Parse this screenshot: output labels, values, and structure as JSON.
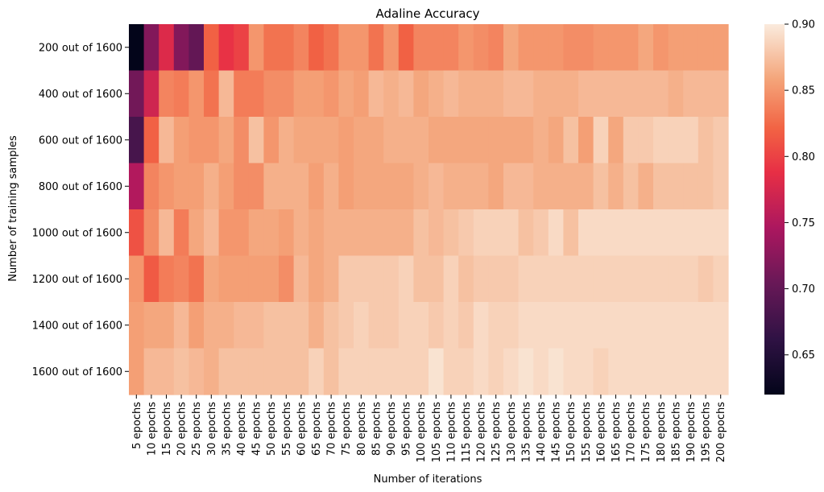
{
  "chart_data": {
    "type": "heatmap",
    "title": "Adaline Accuracy",
    "xlabel": "Number of iterations",
    "ylabel": "Number of training samples",
    "x_categories": [
      "5 epochs",
      "10 epochs",
      "15 epochs",
      "20 epochs",
      "25 epochs",
      "30 epochs",
      "35 epochs",
      "40 epochs",
      "45 epochs",
      "50 epochs",
      "55 epochs",
      "60 epochs",
      "65 epochs",
      "70 epochs",
      "75 epochs",
      "80 epochs",
      "85 epochs",
      "90 epochs",
      "95 epochs",
      "100 epochs",
      "105 epochs",
      "110 epochs",
      "115 epochs",
      "120 epochs",
      "125 epochs",
      "130 epochs",
      "135 epochs",
      "140 epochs",
      "145 epochs",
      "150 epochs",
      "155 epochs",
      "160 epochs",
      "165 epochs",
      "170 epochs",
      "175 epochs",
      "180 epochs",
      "185 epochs",
      "190 epochs",
      "195 epochs",
      "200 epochs"
    ],
    "y_categories": [
      "200 out of 1600",
      "400 out of 1600",
      "600 out of 1600",
      "800 out of 1600",
      "1000 out of 1600",
      "1200 out of 1600",
      "1400 out of 1600",
      "1600 out of 1600"
    ],
    "values": [
      [
        0.62,
        0.72,
        0.78,
        0.72,
        0.7,
        0.82,
        0.79,
        0.8,
        0.85,
        0.83,
        0.83,
        0.84,
        0.82,
        0.83,
        0.85,
        0.85,
        0.83,
        0.85,
        0.82,
        0.84,
        0.84,
        0.84,
        0.85,
        0.845,
        0.84,
        0.86,
        0.85,
        0.85,
        0.85,
        0.845,
        0.845,
        0.85,
        0.85,
        0.85,
        0.86,
        0.85,
        0.855,
        0.855,
        0.855,
        0.855
      ],
      [
        0.71,
        0.77,
        0.84,
        0.835,
        0.85,
        0.83,
        0.87,
        0.835,
        0.835,
        0.845,
        0.845,
        0.855,
        0.855,
        0.85,
        0.86,
        0.855,
        0.87,
        0.865,
        0.87,
        0.86,
        0.865,
        0.87,
        0.865,
        0.865,
        0.865,
        0.87,
        0.87,
        0.865,
        0.865,
        0.865,
        0.87,
        0.87,
        0.87,
        0.87,
        0.87,
        0.87,
        0.865,
        0.87,
        0.87,
        0.87
      ],
      [
        0.68,
        0.82,
        0.87,
        0.855,
        0.85,
        0.85,
        0.86,
        0.845,
        0.875,
        0.85,
        0.865,
        0.86,
        0.86,
        0.86,
        0.855,
        0.86,
        0.86,
        0.865,
        0.865,
        0.865,
        0.86,
        0.86,
        0.86,
        0.86,
        0.86,
        0.86,
        0.86,
        0.865,
        0.86,
        0.875,
        0.855,
        0.885,
        0.86,
        0.88,
        0.88,
        0.885,
        0.885,
        0.885,
        0.875,
        0.88
      ],
      [
        0.75,
        0.84,
        0.85,
        0.855,
        0.855,
        0.865,
        0.855,
        0.845,
        0.845,
        0.865,
        0.865,
        0.865,
        0.855,
        0.865,
        0.855,
        0.86,
        0.86,
        0.86,
        0.86,
        0.865,
        0.87,
        0.865,
        0.865,
        0.865,
        0.86,
        0.87,
        0.87,
        0.865,
        0.865,
        0.865,
        0.865,
        0.875,
        0.865,
        0.875,
        0.865,
        0.875,
        0.875,
        0.875,
        0.875,
        0.88
      ],
      [
        0.81,
        0.845,
        0.87,
        0.835,
        0.86,
        0.87,
        0.85,
        0.85,
        0.86,
        0.86,
        0.855,
        0.865,
        0.86,
        0.865,
        0.865,
        0.865,
        0.865,
        0.865,
        0.865,
        0.875,
        0.87,
        0.875,
        0.88,
        0.885,
        0.885,
        0.885,
        0.875,
        0.88,
        0.89,
        0.875,
        0.89,
        0.89,
        0.89,
        0.89,
        0.89,
        0.89,
        0.89,
        0.89,
        0.89,
        0.89
      ],
      [
        0.85,
        0.815,
        0.835,
        0.84,
        0.83,
        0.86,
        0.855,
        0.855,
        0.855,
        0.855,
        0.845,
        0.87,
        0.86,
        0.865,
        0.88,
        0.88,
        0.88,
        0.88,
        0.885,
        0.875,
        0.875,
        0.885,
        0.875,
        0.88,
        0.88,
        0.88,
        0.885,
        0.885,
        0.885,
        0.885,
        0.885,
        0.885,
        0.885,
        0.885,
        0.885,
        0.885,
        0.885,
        0.885,
        0.88,
        0.885
      ],
      [
        0.855,
        0.86,
        0.86,
        0.87,
        0.855,
        0.865,
        0.865,
        0.87,
        0.87,
        0.875,
        0.875,
        0.875,
        0.865,
        0.875,
        0.88,
        0.885,
        0.88,
        0.88,
        0.885,
        0.885,
        0.88,
        0.885,
        0.88,
        0.89,
        0.885,
        0.885,
        0.89,
        0.89,
        0.89,
        0.89,
        0.89,
        0.89,
        0.89,
        0.89,
        0.89,
        0.89,
        0.89,
        0.89,
        0.89,
        0.89
      ],
      [
        0.855,
        0.87,
        0.87,
        0.875,
        0.87,
        0.865,
        0.875,
        0.875,
        0.875,
        0.875,
        0.875,
        0.875,
        0.885,
        0.875,
        0.885,
        0.885,
        0.885,
        0.885,
        0.885,
        0.885,
        0.895,
        0.885,
        0.885,
        0.89,
        0.885,
        0.89,
        0.895,
        0.89,
        0.895,
        0.89,
        0.89,
        0.885,
        0.89,
        0.89,
        0.89,
        0.89,
        0.89,
        0.89,
        0.89,
        0.89
      ]
    ],
    "vmin": 0.62,
    "vmax": 0.9,
    "colorbar_ticks": [
      "0.65",
      "0.70",
      "0.75",
      "0.80",
      "0.85",
      "0.90"
    ],
    "colormap": "rocket",
    "grid": false,
    "legend": "colorbar-right"
  }
}
